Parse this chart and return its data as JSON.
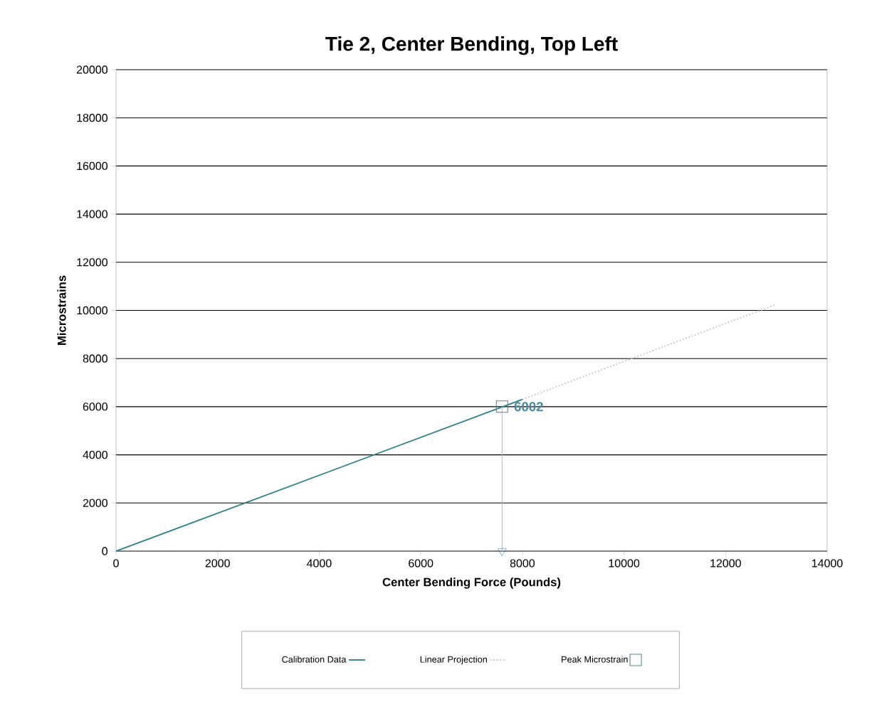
{
  "chart_data": {
    "type": "line",
    "title": "Tie 2, Center Bending, Top Left",
    "xlabel": "Center Bending Force (Pounds)",
    "ylabel": "Microstrains",
    "xlim": [
      0,
      14000
    ],
    "ylim": [
      0,
      20000
    ],
    "xticks": [
      0,
      2000,
      4000,
      6000,
      8000,
      10000,
      12000,
      14000
    ],
    "yticks": [
      0,
      2000,
      4000,
      6000,
      8000,
      10000,
      12000,
      14000,
      16000,
      18000,
      20000
    ],
    "grid": "y",
    "legend": "bottom",
    "series": [
      {
        "name": "Calibration Data",
        "color": "#2e7f8f",
        "x": [
          0,
          8000
        ],
        "values": [
          0,
          6300
        ],
        "line_style": "solid"
      },
      {
        "name": "Linear Projection",
        "color": "#c0c6dc",
        "x": [
          8000,
          13000
        ],
        "values": [
          6300,
          10250
        ],
        "line_style": "dotted"
      },
      {
        "name": "Peak Microstrain",
        "type": "scatter",
        "color": "#4a8a9c",
        "x": [
          7600
        ],
        "values": [
          6002
        ],
        "marker": "square",
        "value_labels": [
          "6002"
        ]
      },
      {
        "color": "#9cc0dc",
        "x": [
          7600,
          7600
        ],
        "values": [
          6000,
          0
        ],
        "line_style": "solid"
      },
      {
        "type": "scatter",
        "color": "#1f6fb0",
        "x": [
          7600
        ],
        "values": [
          0
        ],
        "marker": "triangle"
      }
    ]
  }
}
